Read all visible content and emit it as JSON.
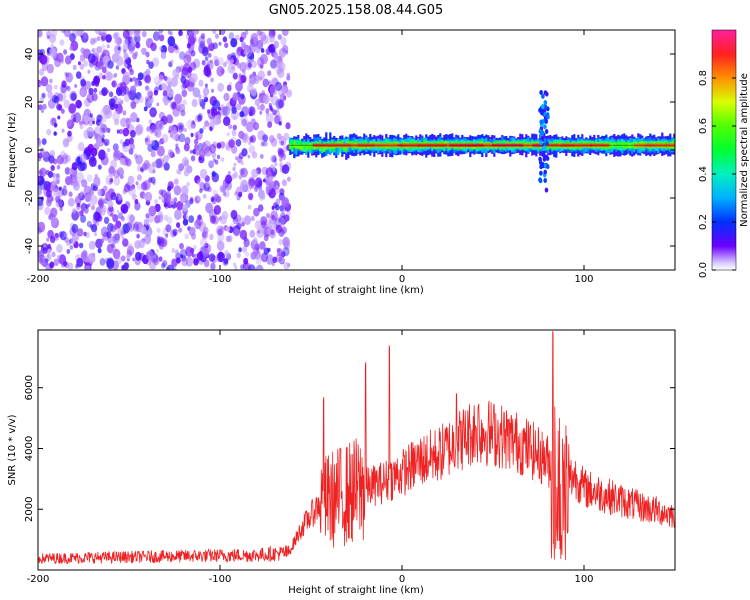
{
  "title": "GN05.2025.158.08.44.G05",
  "chart_data": [
    {
      "type": "heatmap",
      "xlabel": "Height of straight line (km)",
      "ylabel": "Frequency (Hz)",
      "xlim": [
        -200,
        150
      ],
      "ylim": [
        -50,
        50
      ],
      "xticks": [
        -200,
        -100,
        0,
        100
      ],
      "yticks": [
        -40,
        -20,
        0,
        20,
        40
      ],
      "colorbar": {
        "label": "Normalized spectral amplitude",
        "range": [
          0.0,
          1.0
        ],
        "ticks": [
          0.0,
          0.2,
          0.4,
          0.6,
          0.8
        ],
        "tick_labels": [
          "0.0",
          "0.2",
          "0.4",
          "0.6",
          "0.8"
        ]
      },
      "regions": [
        {
          "name": "noise",
          "x_range": [
            -200,
            -62
          ],
          "y_range": [
            -50,
            50
          ],
          "amplitude": 0.08
        },
        {
          "name": "signal-band",
          "x_range": [
            -62,
            150
          ],
          "center_hz": 2,
          "width_hz": 3,
          "amplitude": 0.9
        },
        {
          "name": "spike",
          "x_center": 78,
          "y_range": [
            -17,
            24
          ],
          "amplitude": 0.3
        }
      ]
    },
    {
      "type": "line",
      "xlabel": "Height of straight line (km)",
      "ylabel": "SNR (10 * v/v)",
      "xlim": [
        -200,
        150
      ],
      "ylim": [
        0,
        7900
      ],
      "xticks": [
        -200,
        -100,
        0,
        100
      ],
      "yticks": [
        2000,
        4000,
        6000
      ],
      "color": "#ee2222",
      "envelope": {
        "x": [
          -200,
          -170,
          -120,
          -80,
          -62,
          -55,
          -45,
          -30,
          -20,
          -10,
          0,
          10,
          20,
          30,
          40,
          50,
          60,
          70,
          80,
          85,
          90,
          95,
          100,
          110,
          130,
          150
        ],
        "y": [
          400,
          430,
          480,
          520,
          600,
          1400,
          2200,
          2500,
          2700,
          2900,
          3200,
          3600,
          3800,
          4200,
          4600,
          4500,
          4300,
          4000,
          3600,
          3200,
          3000,
          3100,
          2700,
          2500,
          2100,
          1800
        ]
      },
      "spikes": [
        {
          "x": -43,
          "y": 5700
        },
        {
          "x": -20,
          "y": 6900
        },
        {
          "x": -7,
          "y": 7500
        },
        {
          "x": 30,
          "y": 5900
        },
        {
          "x": 42,
          "y": 5500
        },
        {
          "x": 83,
          "y": 7900
        }
      ]
    }
  ]
}
